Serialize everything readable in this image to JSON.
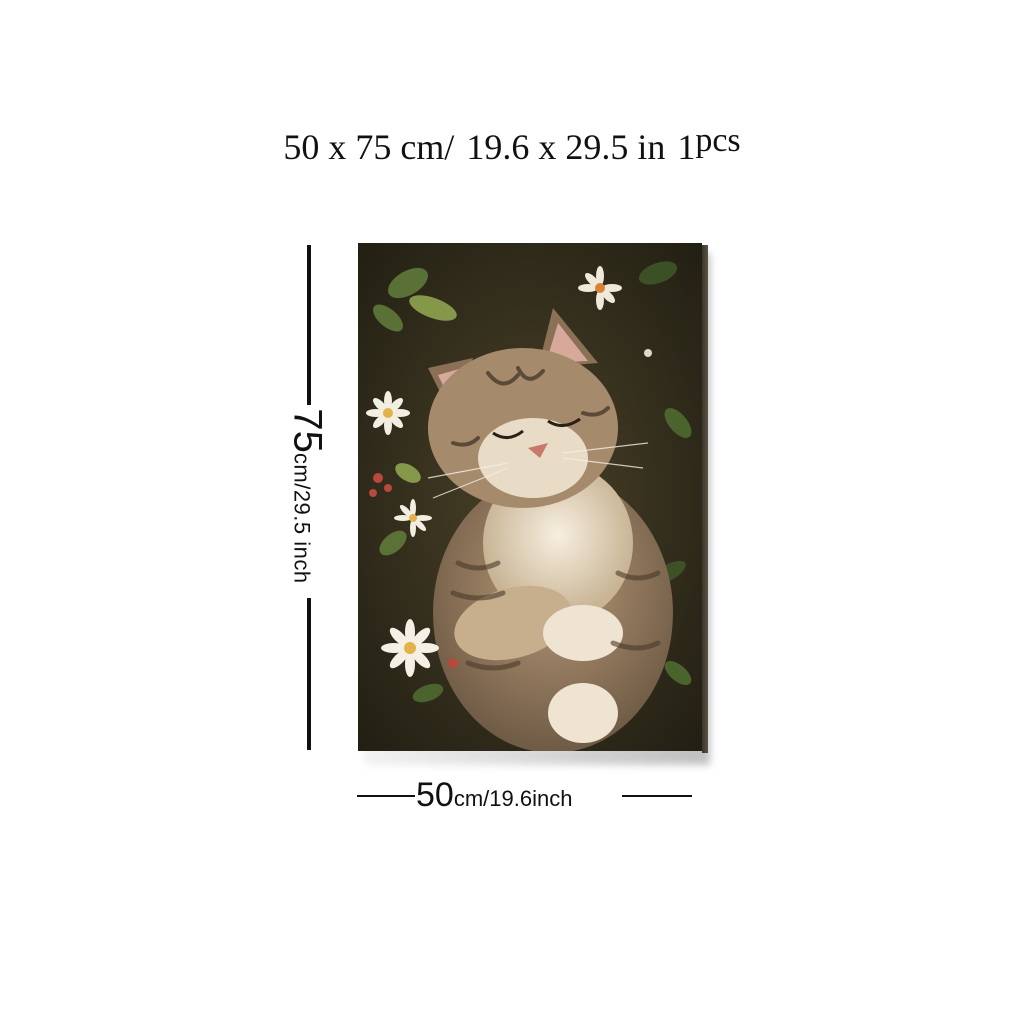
{
  "headline": {
    "size_cm": "50 x 75 cm/",
    "size_in": "19.6  x  29.5 in",
    "quantity": "1",
    "quantity_unit": "pcs"
  },
  "dimensions": {
    "height_value": "75",
    "height_unit_text": "cm/29.5 inch",
    "width_value": "50",
    "width_unit_text": "cm/19.6inch"
  },
  "colors": {
    "background": "#ffffff",
    "lines": "#111111",
    "painting_dark": "#2a2618"
  },
  "icons": {
    "painting": "sleeping-tabby-cat-among-daisies"
  }
}
